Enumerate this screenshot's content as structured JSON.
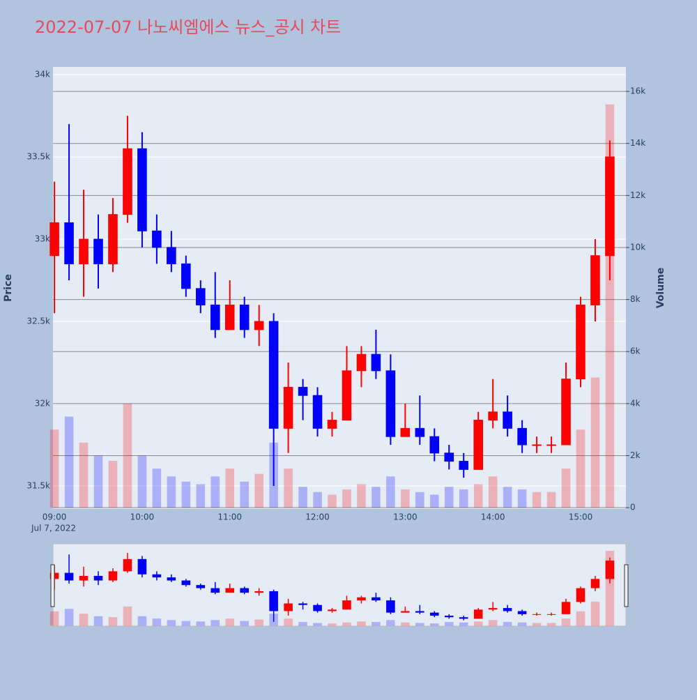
{
  "chart_data": {
    "type": "candlestick",
    "title": "2022-07-07 나노씨엠에스 뉴스_공시 차트",
    "ylabel": "Price",
    "y2label": "Volume",
    "x_date_label": "Jul 7, 2022",
    "increasing_color": "#ff0000",
    "decreasing_color": "#0000ff",
    "rangeslider": true,
    "x": [
      "2022-07-07 09:00",
      "2022-07-07 09:10",
      "2022-07-07 09:20",
      "2022-07-07 09:30",
      "2022-07-07 09:40",
      "2022-07-07 09:50",
      "2022-07-07 10:00",
      "2022-07-07 10:10",
      "2022-07-07 10:20",
      "2022-07-07 10:30",
      "2022-07-07 10:40",
      "2022-07-07 10:50",
      "2022-07-07 11:00",
      "2022-07-07 11:10",
      "2022-07-07 11:20",
      "2022-07-07 11:30",
      "2022-07-07 11:40",
      "2022-07-07 11:50",
      "2022-07-07 12:00",
      "2022-07-07 12:10",
      "2022-07-07 12:20",
      "2022-07-07 12:30",
      "2022-07-07 12:40",
      "2022-07-07 12:50",
      "2022-07-07 13:00",
      "2022-07-07 13:10",
      "2022-07-07 13:20",
      "2022-07-07 13:30",
      "2022-07-07 13:40",
      "2022-07-07 13:50",
      "2022-07-07 14:00",
      "2022-07-07 14:10",
      "2022-07-07 14:20",
      "2022-07-07 14:30",
      "2022-07-07 14:40",
      "2022-07-07 14:50",
      "2022-07-07 15:00",
      "2022-07-07 15:10",
      "2022-07-07 15:20"
    ],
    "open": [
      32900,
      33100,
      32850,
      33000,
      32850,
      33150,
      33550,
      33050,
      32950,
      32850,
      32700,
      32600,
      32450,
      32600,
      32450,
      32500,
      31850,
      32100,
      32050,
      31850,
      31900,
      32200,
      32300,
      32200,
      31800,
      31850,
      31800,
      31700,
      31650,
      31600,
      31900,
      31950,
      31850,
      31750,
      31750,
      31750,
      32150,
      32600,
      32900
    ],
    "high": [
      33350,
      33700,
      33300,
      33150,
      33250,
      33750,
      33650,
      33150,
      33050,
      32900,
      32750,
      32800,
      32750,
      32650,
      32600,
      32550,
      32250,
      32150,
      32100,
      31950,
      32350,
      32350,
      32450,
      32300,
      32000,
      32050,
      31850,
      31750,
      31700,
      31950,
      32150,
      32050,
      31900,
      31800,
      31800,
      32250,
      32650,
      33000,
      33600
    ],
    "low": [
      32550,
      32750,
      32650,
      32700,
      32800,
      33100,
      32950,
      32850,
      32800,
      32650,
      32550,
      32400,
      32450,
      32400,
      32350,
      31500,
      31700,
      31900,
      31800,
      31800,
      31900,
      32100,
      32150,
      31750,
      31800,
      31750,
      31650,
      31600,
      31550,
      31600,
      31850,
      31800,
      31700,
      31700,
      31700,
      31750,
      32100,
      32500,
      32750
    ],
    "close": [
      33100,
      32850,
      33000,
      32850,
      33150,
      33550,
      33050,
      32950,
      32850,
      32700,
      32600,
      32450,
      32600,
      32450,
      32500,
      31850,
      32100,
      32050,
      31850,
      31900,
      32200,
      32300,
      32200,
      31800,
      31850,
      31800,
      31700,
      31650,
      31600,
      31900,
      31950,
      31850,
      31750,
      31750,
      31750,
      32150,
      32600,
      32900,
      33500
    ],
    "volume": [
      3000,
      3500,
      2500,
      2000,
      1800,
      4000,
      2000,
      1500,
      1200,
      1000,
      900,
      1200,
      1500,
      1000,
      1300,
      2500,
      1500,
      800,
      600,
      500,
      700,
      900,
      800,
      1200,
      700,
      600,
      500,
      800,
      700,
      900,
      1200,
      800,
      700,
      600,
      600,
      1500,
      3000,
      5000,
      15500
    ],
    "xlim": [
      "2022-07-07 08:59",
      "2022-07-07 15:31"
    ],
    "xticks": [
      {
        "value": "2022-07-07 09:00",
        "label": "09:00"
      },
      {
        "value": "2022-07-07 10:00",
        "label": "10:00"
      },
      {
        "value": "2022-07-07 11:00",
        "label": "11:00"
      },
      {
        "value": "2022-07-07 12:00",
        "label": "12:00"
      },
      {
        "value": "2022-07-07 13:00",
        "label": "13:00"
      },
      {
        "value": "2022-07-07 14:00",
        "label": "14:00"
      },
      {
        "value": "2022-07-07 15:00",
        "label": "15:00"
      }
    ],
    "ylim": [
      31360,
      34047
    ],
    "yticks": [
      {
        "value": 31500,
        "label": "31.5k"
      },
      {
        "value": 32000,
        "label": "32k"
      },
      {
        "value": 32500,
        "label": "32.5k"
      },
      {
        "value": 33000,
        "label": "33k"
      },
      {
        "value": 33500,
        "label": "33.5k"
      },
      {
        "value": 34000,
        "label": "34k"
      }
    ],
    "y2lim": [
      -50,
      16940
    ],
    "y2ticks": [
      0,
      {
        "value": 2000,
        "label": "2k"
      },
      {
        "value": 4000,
        "label": "4k"
      },
      {
        "value": 6000,
        "label": "6k"
      },
      {
        "value": 8000,
        "label": "8k"
      },
      {
        "value": 10000,
        "label": "10k"
      },
      {
        "value": 12000,
        "label": "12k"
      },
      {
        "value": 14000,
        "label": "14k"
      },
      {
        "value": 16000,
        "label": "16k"
      }
    ]
  }
}
